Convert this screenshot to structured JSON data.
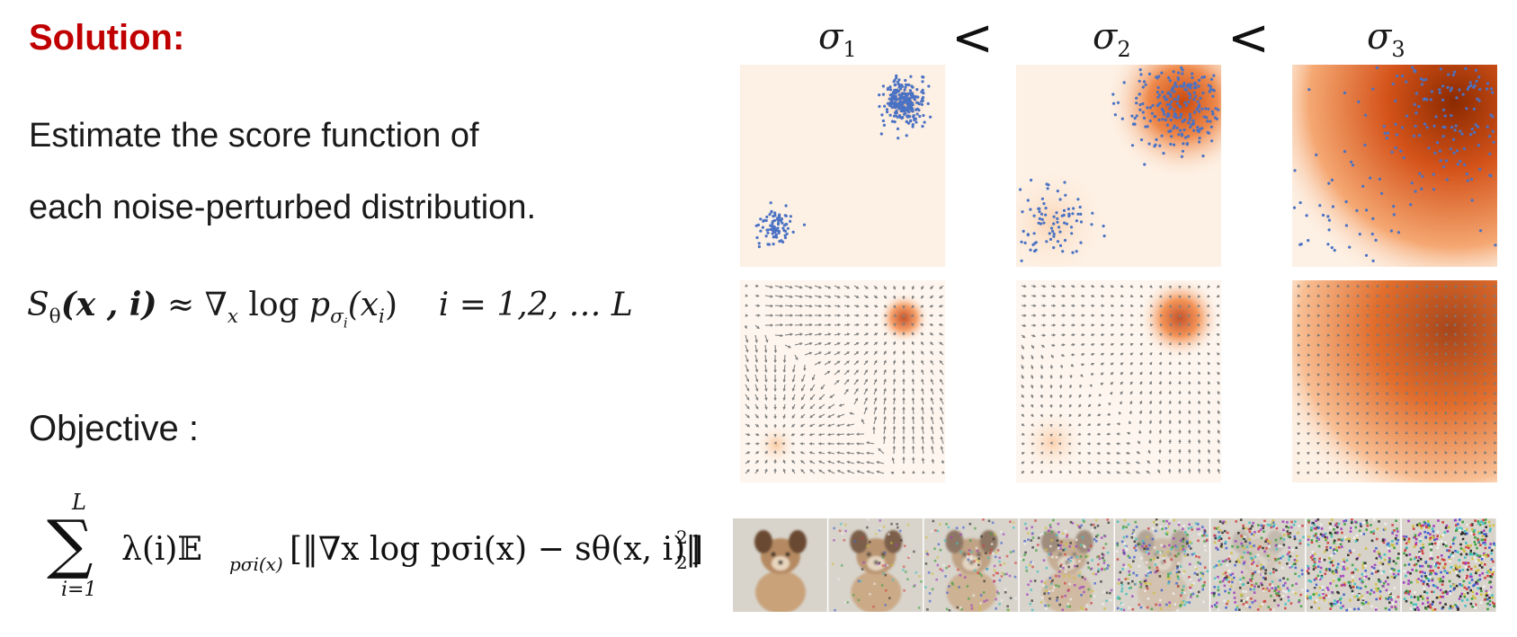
{
  "slide": {
    "title": "Solution:",
    "description_line1": "Estimate the score function of",
    "description_line2": "each noise-perturbed distribution.",
    "formula_score": {
      "lhs": "S",
      "lhs_sub": "θ",
      "args": "(x , i)",
      "approx": "≈",
      "nabla": "∇",
      "nabla_sub": "x",
      "log": "log",
      "p": "p",
      "p_sub": "σ",
      "p_sub_sub": "i",
      "arg": "(x",
      "arg_sub": "i",
      "arg_close": ")",
      "range": "i = 1,2, … L"
    },
    "objective_label": "Objective :",
    "formula_objective": {
      "sum_top": "L",
      "sum_bottom": "i=1",
      "body": "λ(i)𝔼",
      "expect_sub": "pσi(x)",
      "inner": "[‖∇x log pσi(x) − sθ(x, i)‖",
      "norm_sup": "2",
      "norm_sub": "2",
      "close": "]"
    }
  },
  "figure": {
    "sigma_labels": [
      {
        "symbol": "σ",
        "sub": "1"
      },
      {
        "symbol": "σ",
        "sub": "2"
      },
      {
        "symbol": "σ",
        "sub": "3"
      }
    ],
    "comparators": [
      "<",
      "<"
    ],
    "colors": {
      "density_light": "#fdf0e4",
      "density_dark": "#e8601c",
      "density_darkest": "#8b2a00",
      "points": "#4a72c4",
      "arrows": "#7a7a7a"
    },
    "noise_levels": 8
  }
}
